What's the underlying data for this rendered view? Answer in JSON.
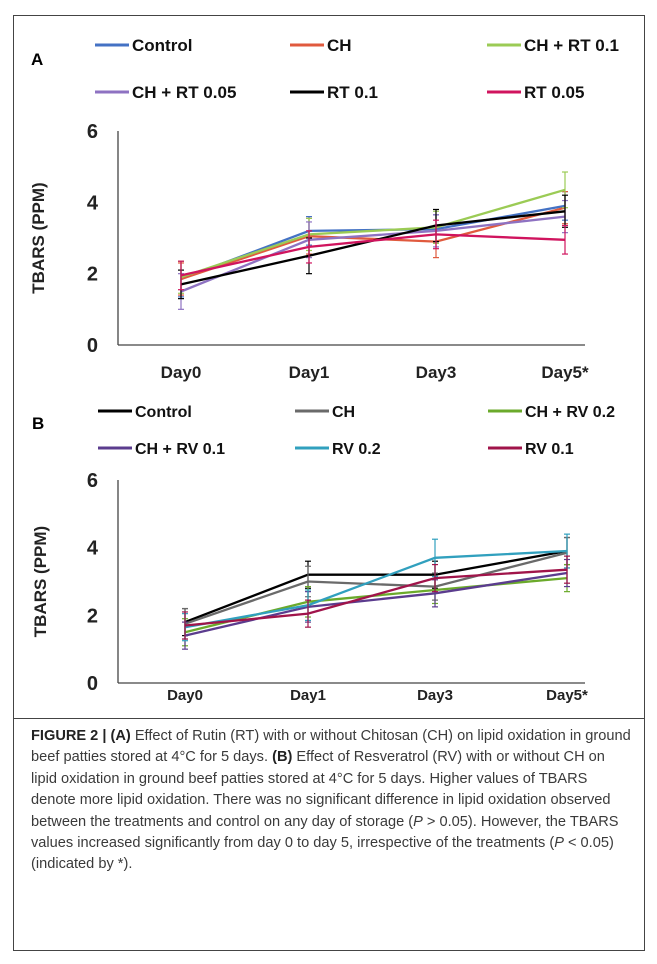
{
  "colors": {
    "control_A": "#4472C4",
    "ch_A": "#E05A3E",
    "chrt01_A": "#9BCB55",
    "chrt005_A": "#8E72C2",
    "rt01_A": "#000000",
    "rt005_A": "#D0145E",
    "control_B": "#000000",
    "ch_B": "#6A6A6A",
    "chrv02_B": "#6BAA2B",
    "chrv01_B": "#5B3C8E",
    "rv02_B": "#31A0BE",
    "rv01_B": "#A0144A"
  },
  "chart_data": [
    {
      "type": "line",
      "panel": "A",
      "ylabel": "TBARS (PPM)",
      "ylim": [
        0,
        6
      ],
      "yticks": [
        "0",
        "2",
        "4",
        "6"
      ],
      "categories": [
        "Day0",
        "Day1",
        "Day3",
        "Day5*"
      ],
      "legend": "top",
      "series": [
        {
          "name": "Control",
          "color": "#4472C4",
          "values": [
            1.85,
            3.2,
            3.25,
            3.9
          ],
          "err": [
            0.5,
            0.4,
            0.4,
            0.4
          ]
        },
        {
          "name": "CH",
          "color": "#E05A3E",
          "values": [
            1.85,
            3.05,
            2.9,
            3.85
          ],
          "err": [
            0.45,
            0.5,
            0.45,
            0.45
          ]
        },
        {
          "name": "CH + RT 0.1",
          "color": "#9BCB55",
          "values": [
            1.9,
            3.1,
            3.3,
            4.35
          ],
          "err": [
            0.45,
            0.45,
            0.45,
            0.5
          ]
        },
        {
          "name": "CH + RT 0.05",
          "color": "#8E72C2",
          "values": [
            1.5,
            2.95,
            3.2,
            3.6
          ],
          "err": [
            0.5,
            0.5,
            0.45,
            0.45
          ]
        },
        {
          "name": "RT 0.1",
          "color": "#000000",
          "values": [
            1.7,
            2.5,
            3.35,
            3.75
          ],
          "err": [
            0.4,
            0.5,
            0.45,
            0.45
          ]
        },
        {
          "name": "RT 0.05",
          "color": "#D0145E",
          "values": [
            1.95,
            2.75,
            3.1,
            2.95
          ],
          "err": [
            0.4,
            0.45,
            0.4,
            0.4
          ]
        }
      ]
    },
    {
      "type": "line",
      "panel": "B",
      "ylabel": "TBARS (PPM)",
      "ylim": [
        0,
        6
      ],
      "yticks": [
        "0",
        "2",
        "4",
        "6"
      ],
      "categories": [
        "Day0",
        "Day1",
        "Day3",
        "Day5*"
      ],
      "legend": "top",
      "series": [
        {
          "name": "Control",
          "color": "#000000",
          "values": [
            1.8,
            3.2,
            3.2,
            3.9
          ],
          "err": [
            0.4,
            0.4,
            0.4,
            0.4
          ]
        },
        {
          "name": "CH",
          "color": "#6A6A6A",
          "values": [
            1.75,
            3.0,
            2.85,
            3.85
          ],
          "err": [
            0.45,
            0.45,
            0.4,
            0.45
          ]
        },
        {
          "name": "CH + RV 0.2",
          "color": "#6BAA2B",
          "values": [
            1.5,
            2.4,
            2.75,
            3.1
          ],
          "err": [
            0.4,
            0.45,
            0.4,
            0.4
          ]
        },
        {
          "name": "CH + RV 0.1",
          "color": "#5B3C8E",
          "values": [
            1.4,
            2.25,
            2.65,
            3.25
          ],
          "err": [
            0.4,
            0.45,
            0.4,
            0.4
          ]
        },
        {
          "name": "RV 0.2",
          "color": "#31A0BE",
          "values": [
            1.65,
            2.3,
            3.7,
            3.9
          ],
          "err": [
            0.4,
            0.45,
            0.55,
            0.5
          ]
        },
        {
          "name": "RV 0.1",
          "color": "#A0144A",
          "values": [
            1.7,
            2.05,
            3.1,
            3.35
          ],
          "err": [
            0.4,
            0.4,
            0.4,
            0.4
          ]
        }
      ]
    }
  ],
  "caption": {
    "label": "FIGURE 2 | ",
    "a_tag": "(A)",
    "a_text": " Effect of Rutin (RT) with or without Chitosan (CH) on lipid oxidation in ground beef patties stored at 4°C for 5 days. ",
    "b_tag": "(B)",
    "b_text_1": " Effect of Resveratrol (RV) with or without CH on lipid oxidation in ground beef patties stored at 4°C for 5 days. Higher values of TBARS denote more lipid oxidation. There was no significant difference in lipid oxidation observed between the treatments and control on any day of storage (",
    "p1_italic": "P",
    "p1_rest": " > 0.05). However, the TBARS values increased significantly from day 0 to day 5, irrespective of the treatments (",
    "p2_italic": "P",
    "p2_rest": " < 0.05) (indicated by *)."
  }
}
